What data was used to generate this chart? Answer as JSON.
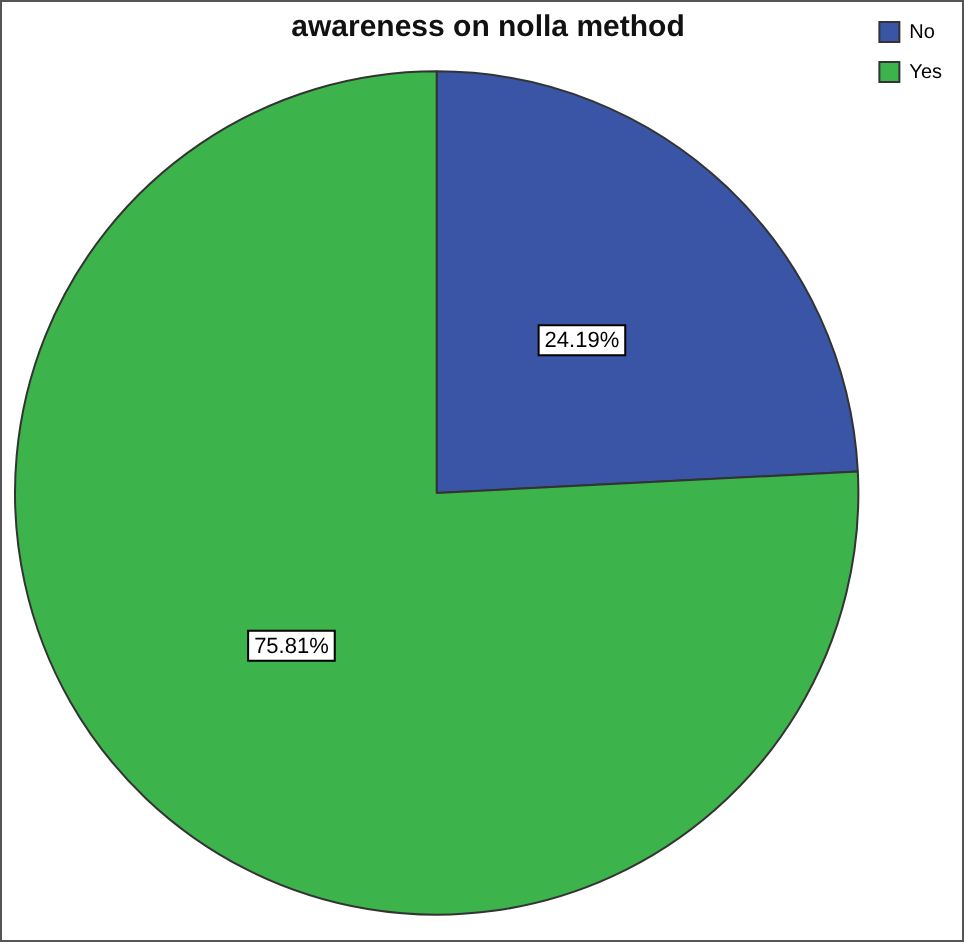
{
  "chart_data": {
    "type": "pie",
    "title": "awareness on nolla method",
    "categories": [
      "No",
      "Yes"
    ],
    "values": [
      24.19,
      75.81
    ],
    "colors": [
      "#3a55a5",
      "#3db34b"
    ],
    "value_labels": [
      "24.19%",
      "75.81%"
    ],
    "legend": "top right"
  }
}
